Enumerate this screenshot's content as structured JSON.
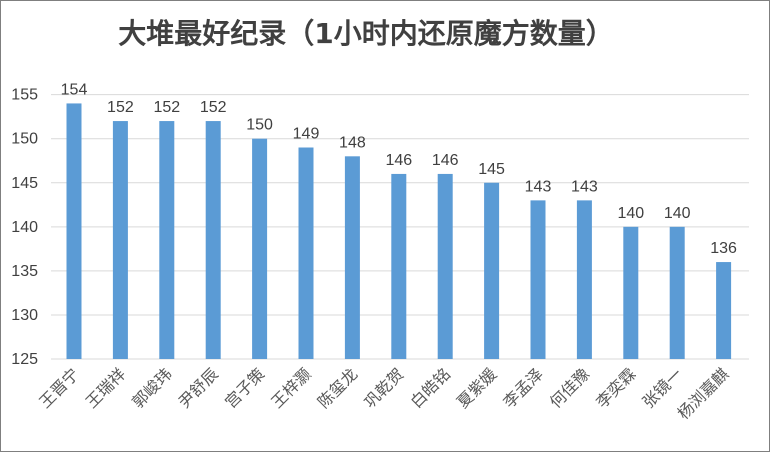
{
  "chart_data": {
    "type": "bar",
    "title": "大堆最好纪录（1小时内还原魔方数量）",
    "xlabel": "",
    "ylabel": "",
    "categories": [
      "王晋宁",
      "王瑞祥",
      "郭峻玮",
      "尹舒辰",
      "宫子策",
      "王梓灏",
      "陈玺龙",
      "巩乾贺",
      "白皓铭",
      "夏紫媛",
      "李孟泽",
      "何佳豫",
      "李奕霖",
      "张镜一",
      "杨浏嘉麒"
    ],
    "values": [
      154,
      152,
      152,
      152,
      150,
      149,
      148,
      146,
      146,
      145,
      143,
      143,
      140,
      140,
      136
    ],
    "ylim": [
      125,
      157
    ],
    "yticks": [
      125,
      130,
      135,
      140,
      145,
      150,
      155
    ],
    "grid": true,
    "legend": "none",
    "bar_color": "#5b9bd5",
    "grid_color": "#d9d9d9"
  }
}
